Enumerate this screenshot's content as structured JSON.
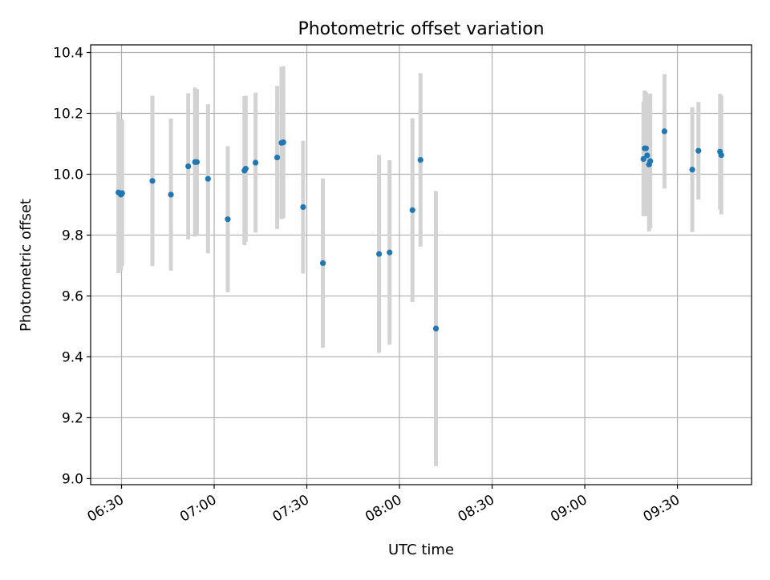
{
  "chart_data": {
    "type": "scatter",
    "title": "Photometric offset variation",
    "xlabel": "UTC time",
    "ylabel": "Photometric offset",
    "xlim": [
      "06:20",
      "09:54"
    ],
    "ylim": [
      8.98,
      10.425
    ],
    "x_ticks": [
      "06:30",
      "07:00",
      "07:30",
      "08:00",
      "08:30",
      "09:00",
      "09:30"
    ],
    "y_ticks": [
      "9.0",
      "9.2",
      "9.4",
      "9.6",
      "9.8",
      "10.0",
      "10.2",
      "10.4"
    ],
    "grid": true,
    "colors": {
      "points": "#1f77b4",
      "errorbars": "#d3d3d3",
      "grid": "#b0b0b0"
    },
    "points": [
      {
        "x": "06:29:00",
        "y": 9.94,
        "err": 0.265
      },
      {
        "x": "06:29:48",
        "y": 9.933,
        "err": 0.25
      },
      {
        "x": "06:30:12",
        "y": 9.938,
        "err": 0.24
      },
      {
        "x": "06:40:00",
        "y": 9.978,
        "err": 0.28
      },
      {
        "x": "06:46:00",
        "y": 9.933,
        "err": 0.25
      },
      {
        "x": "06:51:36",
        "y": 10.026,
        "err": 0.24
      },
      {
        "x": "06:53:48",
        "y": 10.04,
        "err": 0.245
      },
      {
        "x": "06:54:24",
        "y": 10.04,
        "err": 0.24
      },
      {
        "x": "06:58:00",
        "y": 9.985,
        "err": 0.245
      },
      {
        "x": "07:04:24",
        "y": 9.852,
        "err": 0.24
      },
      {
        "x": "07:09:48",
        "y": 10.012,
        "err": 0.245
      },
      {
        "x": "07:10:12",
        "y": 10.018,
        "err": 0.24
      },
      {
        "x": "07:13:24",
        "y": 10.038,
        "err": 0.23
      },
      {
        "x": "07:20:24",
        "y": 10.055,
        "err": 0.235
      },
      {
        "x": "07:21:48",
        "y": 10.103,
        "err": 0.25
      },
      {
        "x": "07:22:24",
        "y": 10.105,
        "err": 0.25
      },
      {
        "x": "07:28:48",
        "y": 9.892,
        "err": 0.218
      },
      {
        "x": "07:35:12",
        "y": 9.708,
        "err": 0.278
      },
      {
        "x": "07:53:24",
        "y": 9.738,
        "err": 0.325
      },
      {
        "x": "07:56:48",
        "y": 9.743,
        "err": 0.303
      },
      {
        "x": "08:04:12",
        "y": 9.882,
        "err": 0.302
      },
      {
        "x": "08:06:48",
        "y": 10.047,
        "err": 0.285
      },
      {
        "x": "08:11:48",
        "y": 9.493,
        "err": 0.452
      },
      {
        "x": "09:19:00",
        "y": 10.05,
        "err": 0.188
      },
      {
        "x": "09:19:24",
        "y": 10.085,
        "err": 0.19
      },
      {
        "x": "09:19:48",
        "y": 10.085,
        "err": 0.185
      },
      {
        "x": "09:20:12",
        "y": 10.062,
        "err": 0.2
      },
      {
        "x": "09:20:48",
        "y": 10.032,
        "err": 0.22
      },
      {
        "x": "09:21:12",
        "y": 10.043,
        "err": 0.222
      },
      {
        "x": "09:25:48",
        "y": 10.141,
        "err": 0.188
      },
      {
        "x": "09:34:48",
        "y": 10.015,
        "err": 0.205
      },
      {
        "x": "09:36:48",
        "y": 10.077,
        "err": 0.16
      },
      {
        "x": "09:43:48",
        "y": 10.074,
        "err": 0.19
      },
      {
        "x": "09:44:12",
        "y": 10.063,
        "err": 0.195
      }
    ]
  }
}
